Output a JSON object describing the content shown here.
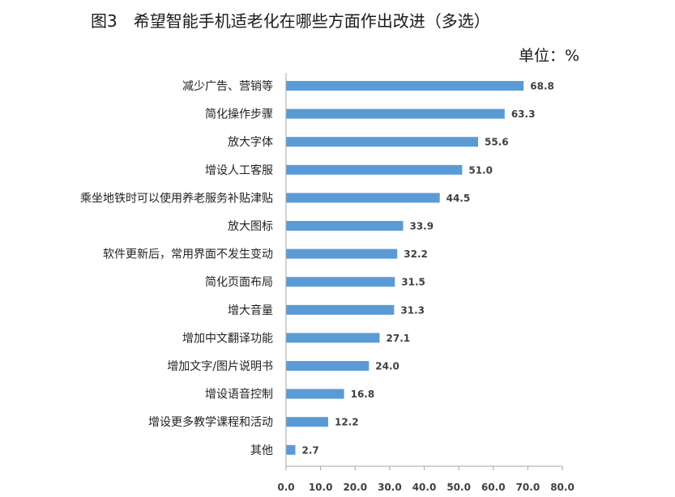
{
  "chart_data": {
    "type": "bar",
    "orientation": "horizontal",
    "title": "图3　希望智能手机适老化在哪些方面作出改进（多选）",
    "unit": "单位：%",
    "categories": [
      "减少广告、营销等",
      "简化操作步骤",
      "放大字体",
      "增设人工客服",
      "乘坐地铁时可以使用养老服务补贴津贴",
      "放大图标",
      "软件更新后，常用界面不发生变动",
      "简化页面布局",
      "增大音量",
      "增加中文翻译功能",
      "增加文字/图片说明书",
      "增设语音控制",
      "增设更多教学课程和活动",
      "其他"
    ],
    "values": [
      68.8,
      63.3,
      55.6,
      51.0,
      44.5,
      33.9,
      32.2,
      31.5,
      31.3,
      27.1,
      24.0,
      16.8,
      12.2,
      2.7
    ],
    "value_labels": [
      "68.8",
      "63.3",
      "55.6",
      "51.0",
      "44.5",
      "33.9",
      "32.2",
      "31.5",
      "31.3",
      "27.1",
      "24.0",
      "16.8",
      "12.2",
      "2.7"
    ],
    "xlim": [
      0,
      80
    ],
    "ticks": [
      "0.0",
      "10.0",
      "20.0",
      "30.0",
      "40.0",
      "50.0",
      "60.0",
      "70.0",
      "80.0"
    ],
    "bar_color": "#5b9bd5",
    "grid": false
  }
}
